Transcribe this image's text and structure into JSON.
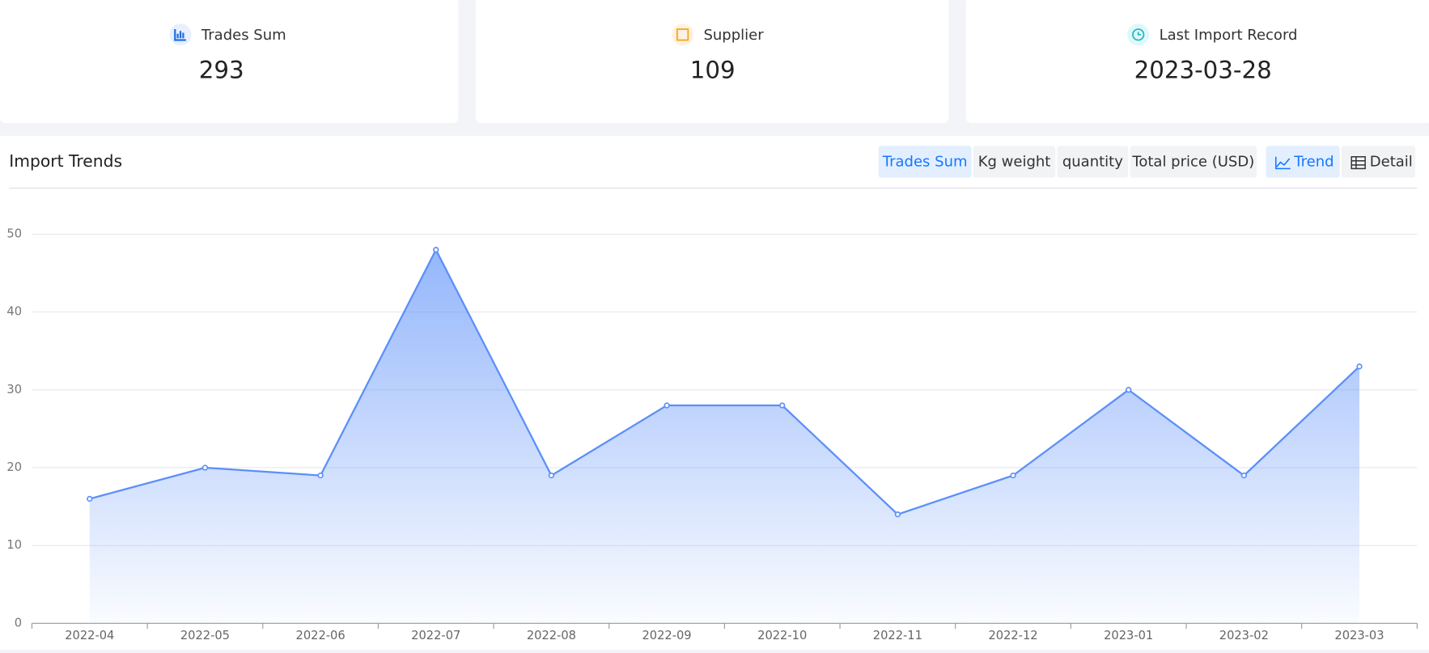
{
  "cards": [
    {
      "label": "Trades Sum",
      "value": 293
    },
    {
      "label": "Supplier",
      "value": 109
    },
    {
      "label": "Last Import Record",
      "value": "2023-03-28"
    }
  ],
  "chart_data": {
    "type": "line",
    "title": "Import Trends",
    "metric_tabs": [
      "Trades Sum",
      "Kg weight",
      "quantity",
      "Total price (USD)"
    ],
    "active_metric": 0,
    "view_buttons": [
      "Trend",
      "Detail"
    ],
    "active_view": 0,
    "categories": [
      "2022-04",
      "2022-05",
      "2022-06",
      "2022-07",
      "2022-08",
      "2022-09",
      "2022-10",
      "2022-11",
      "2022-12",
      "2023-01",
      "2023-02",
      "2023-03"
    ],
    "series": [
      {
        "name": "Trades Sum",
        "color": "#5b8ff9",
        "values": [
          16,
          20,
          19,
          48,
          19,
          28,
          28,
          14,
          19,
          30,
          19,
          33
        ]
      }
    ],
    "ylim": [
      0,
      50
    ],
    "yticks": [
      0,
      10,
      20,
      30,
      40,
      50
    ],
    "grid": true,
    "area": true
  }
}
